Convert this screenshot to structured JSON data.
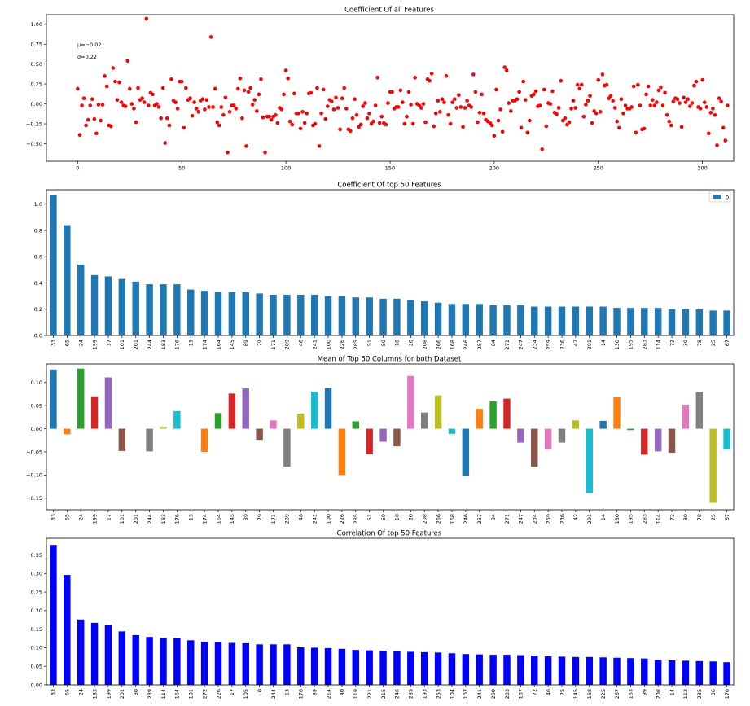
{
  "chart_data": [
    {
      "type": "scatter",
      "title": "Coefficient Of all Features",
      "annotations": [
        "μ=−0.02",
        "σ=0.22"
      ],
      "x_ticks": [
        "0",
        "50",
        "100",
        "150",
        "200",
        "250",
        "300"
      ],
      "y_ticks": [
        "1.00",
        "0.75",
        "0.50",
        "0.25",
        "0.00",
        "−0.25",
        "−0.50"
      ],
      "xlim": [
        -15,
        315
      ],
      "ylim": [
        -0.72,
        1.12
      ],
      "color": "#ff0000",
      "grid": false,
      "y": [
        0.19,
        -0.39,
        -0.02,
        0.07,
        -0.27,
        -0.2,
        -0.02,
        0.06,
        -0.19,
        -0.37,
        -0.01,
        -0.21,
        -0.01,
        0.35,
        0.22,
        -0.27,
        -0.28,
        0.45,
        0.28,
        0.05,
        0.27,
        0.02,
        -0.02,
        -0.03,
        0.54,
        0.19,
        0.0,
        -0.06,
        -0.23,
        0.2,
        0.05,
        0.07,
        0.02,
        1.07,
        -0.02,
        0.14,
        0.12,
        -0.02,
        0.0,
        -0.04,
        -0.18,
        0.2,
        -0.49,
        -0.18,
        -0.27,
        0.31,
        0.04,
        0.02,
        -0.06,
        0.28,
        0.28,
        -0.3,
        0.2,
        0.05,
        0.07,
        -0.15,
        0.02,
        -0.06,
        -0.1,
        0.04,
        0.06,
        -0.07,
        0.05,
        -0.04,
        0.84,
        -0.04,
        0.19,
        -0.23,
        -0.27,
        -0.04,
        -0.14,
        0.08,
        -0.61,
        -0.1,
        -0.02,
        -0.02,
        -0.06,
        0.19,
        0.32,
        -0.18,
        0.17,
        -0.53,
        0.15,
        0.2,
        -0.01,
        0.05,
        -0.09,
        0.12,
        0.31,
        -0.17,
        -0.61,
        -0.16,
        -0.16,
        -0.2,
        -0.16,
        -0.14,
        -0.24,
        -0.05,
        -0.07,
        0.12,
        0.42,
        0.32,
        -0.22,
        -0.26,
        0.13,
        -0.12,
        -0.12,
        -0.31,
        -0.1,
        -0.24,
        -0.12,
        0.13,
        0.14,
        -0.27,
        -0.25,
        0.2,
        -0.53,
        -0.12,
        0.18,
        -0.19,
        -0.03,
        0.05,
        0.03,
        -0.07,
        0.08,
        -0.05,
        -0.32,
        0.07,
        0.2,
        -0.06,
        -0.32,
        -0.34,
        -0.18,
        0.06,
        -0.14,
        -0.29,
        -0.26,
        -0.03,
        0.01,
        -0.18,
        -0.12,
        -0.25,
        -0.22,
        -0.02,
        0.33,
        -0.24,
        -0.16,
        -0.24,
        -0.26,
        0.01,
        0.15,
        0.15,
        -0.06,
        -0.04,
        -0.04,
        0.17,
        0.02,
        -0.25,
        -0.16,
        0.15,
        -0.01,
        -0.25,
        0.33,
        0.0,
        -0.02,
        -0.05,
        0.0,
        -0.23,
        0.31,
        0.29,
        0.38,
        -0.28,
        -0.12,
        0.04,
        -0.1,
        0.06,
        0.02,
        0.35,
        -0.14,
        -0.25,
        0.02,
        0.06,
        -0.05,
        0.11,
        -0.04,
        -0.29,
        -0.05,
        0.04,
        -0.02,
        -0.04,
        0.37,
        0.15,
        -0.23,
        -0.11,
        0.12,
        -0.12,
        -0.2,
        -0.22,
        -0.24,
        -0.27,
        -0.4,
        0.18,
        -0.21,
        -0.07,
        -0.35,
        0.46,
        0.42,
        0.01,
        -0.09,
        0.04,
        0.04,
        0.06,
        0.15,
        -0.3,
        0.28,
        0.05,
        -0.36,
        -0.21,
        0.1,
        0.12,
        0.16,
        -0.03,
        -0.02,
        -0.57,
        0.18,
        -0.28,
        0.01,
        0.0,
        0.16,
        -0.11,
        -0.13,
        -0.05,
        0.29,
        -0.21,
        -0.18,
        -0.26,
        -0.23,
        -0.06,
        0.04,
        -0.05,
        0.24,
        0.19,
        0.24,
        -0.16,
        -0.01,
        0.04,
        0.1,
        -0.24,
        -0.09,
        -0.12,
        0.3,
        -0.1,
        0.37,
        0.23,
        0.24,
        0.07,
        0.1,
        0.04,
        -0.05,
        -0.22,
        -0.3,
        0.06,
        -0.12,
        -0.02,
        -0.06,
        -0.06,
        -0.04,
        0.22,
        -0.36,
        0.24,
        -0.02,
        -0.32,
        -0.31,
        0.12,
        0.22,
        -0.02,
        0.05,
        -0.02,
        0.02,
        0.17,
        0.21,
        -0.02,
        0.14,
        -0.14,
        -0.22,
        -0.27,
        0.03,
        0.07,
        0.06,
        0.01,
        -0.29,
        0.08,
        0.02,
        0.06,
        -0.03,
        0.01,
        0.23,
        0.28,
        -0.04,
        -0.06,
        0.3,
        0.02,
        -0.04,
        -0.37,
        -0.11,
        -0.06,
        -0.14,
        -0.52,
        0.07,
        0.03,
        -0.3,
        -0.46,
        -0.02
      ]
    },
    {
      "type": "bar",
      "title": "Coefficient Of top 50 Features",
      "legend": [
        "0"
      ],
      "legend_position": "top-right",
      "color": "#1f77b4",
      "ylim": [
        0,
        1.11
      ],
      "y_ticks": [
        "0.0",
        "0.2",
        "0.4",
        "0.6",
        "0.8",
        "1.0"
      ],
      "categories": [
        "33",
        "65",
        "24",
        "199",
        "17",
        "101",
        "201",
        "244",
        "183",
        "176",
        "13",
        "174",
        "164",
        "145",
        "89",
        "79",
        "171",
        "289",
        "46",
        "241",
        "100",
        "226",
        "285",
        "51",
        "50",
        "18",
        "20",
        "208",
        "266",
        "168",
        "246",
        "257",
        "84",
        "271",
        "247",
        "234",
        "259",
        "236",
        "42",
        "291",
        "14",
        "130",
        "195",
        "283",
        "114",
        "72",
        "30",
        "78",
        "25",
        "67"
      ],
      "values": [
        1.07,
        0.84,
        0.54,
        0.46,
        0.45,
        0.43,
        0.41,
        0.39,
        0.39,
        0.39,
        0.35,
        0.34,
        0.33,
        0.33,
        0.33,
        0.32,
        0.31,
        0.31,
        0.31,
        0.31,
        0.3,
        0.3,
        0.29,
        0.29,
        0.28,
        0.28,
        0.27,
        0.26,
        0.25,
        0.24,
        0.24,
        0.24,
        0.23,
        0.23,
        0.23,
        0.22,
        0.22,
        0.22,
        0.22,
        0.22,
        0.22,
        0.21,
        0.21,
        0.21,
        0.21,
        0.2,
        0.2,
        0.2,
        0.19,
        0.19
      ]
    },
    {
      "type": "bar",
      "title": "Mean of Top 50 Columns for both Dataset",
      "ylim": [
        -0.175,
        0.14
      ],
      "y_ticks": [
        "0.10",
        "0.05",
        "0.00",
        "−0.05",
        "−0.10",
        "−0.15"
      ],
      "palette": [
        "#1f77b4",
        "#ff7f0e",
        "#2ca02c",
        "#d62728",
        "#9467bd",
        "#8c564b",
        "#e377c2",
        "#7f7f7f",
        "#bcbd22",
        "#17becf"
      ],
      "categories": [
        "33",
        "65",
        "24",
        "199",
        "17",
        "101",
        "201",
        "244",
        "183",
        "176",
        "13",
        "174",
        "164",
        "145",
        "89",
        "79",
        "171",
        "289",
        "46",
        "241",
        "100",
        "226",
        "285",
        "51",
        "50",
        "18",
        "20",
        "208",
        "266",
        "168",
        "246",
        "257",
        "84",
        "271",
        "247",
        "234",
        "259",
        "236",
        "42",
        "291",
        "14",
        "130",
        "195",
        "283",
        "114",
        "72",
        "30",
        "78",
        "25",
        "67"
      ],
      "values": [
        0.128,
        -0.012,
        0.13,
        0.07,
        0.111,
        -0.048,
        0.0,
        -0.049,
        0.004,
        0.038,
        0.0,
        -0.05,
        0.034,
        0.076,
        0.087,
        -0.024,
        0.018,
        -0.082,
        0.033,
        0.08,
        0.088,
        -0.1,
        0.016,
        -0.055,
        -0.028,
        -0.038,
        0.114,
        0.035,
        0.072,
        -0.011,
        -0.102,
        0.043,
        0.059,
        0.065,
        -0.03,
        -0.082,
        -0.045,
        -0.03,
        0.018,
        -0.139,
        0.017,
        0.068,
        -0.003,
        -0.056,
        -0.049,
        -0.052,
        0.052,
        0.079,
        -0.16,
        -0.045
      ]
    },
    {
      "type": "bar",
      "title": "Correlation Of top 50 Features",
      "color": "#0000ff",
      "ylim": [
        0,
        0.395
      ],
      "y_ticks": [
        "0.00",
        "0.05",
        "0.10",
        "0.15",
        "0.20",
        "0.25",
        "0.30",
        "0.35"
      ],
      "categories": [
        "33",
        "65",
        "24",
        "183",
        "199",
        "201",
        "30",
        "289",
        "114",
        "164",
        "101",
        "272",
        "226",
        "17",
        "105",
        "0",
        "244",
        "13",
        "176",
        "89",
        "214",
        "40",
        "119",
        "221",
        "215",
        "246",
        "285",
        "193",
        "253",
        "104",
        "107",
        "241",
        "280",
        "283",
        "137",
        "72",
        "46",
        "25",
        "145",
        "168",
        "225",
        "267",
        "163",
        "99",
        "208",
        "14",
        "112",
        "235",
        "36",
        "170"
      ],
      "values": [
        0.377,
        0.296,
        0.176,
        0.167,
        0.161,
        0.144,
        0.134,
        0.129,
        0.126,
        0.126,
        0.12,
        0.116,
        0.115,
        0.113,
        0.112,
        0.109,
        0.109,
        0.109,
        0.101,
        0.1,
        0.099,
        0.097,
        0.094,
        0.093,
        0.092,
        0.09,
        0.089,
        0.088,
        0.087,
        0.085,
        0.083,
        0.082,
        0.081,
        0.081,
        0.08,
        0.079,
        0.077,
        0.076,
        0.075,
        0.075,
        0.074,
        0.073,
        0.072,
        0.071,
        0.067,
        0.066,
        0.065,
        0.064,
        0.063,
        0.061
      ]
    }
  ]
}
